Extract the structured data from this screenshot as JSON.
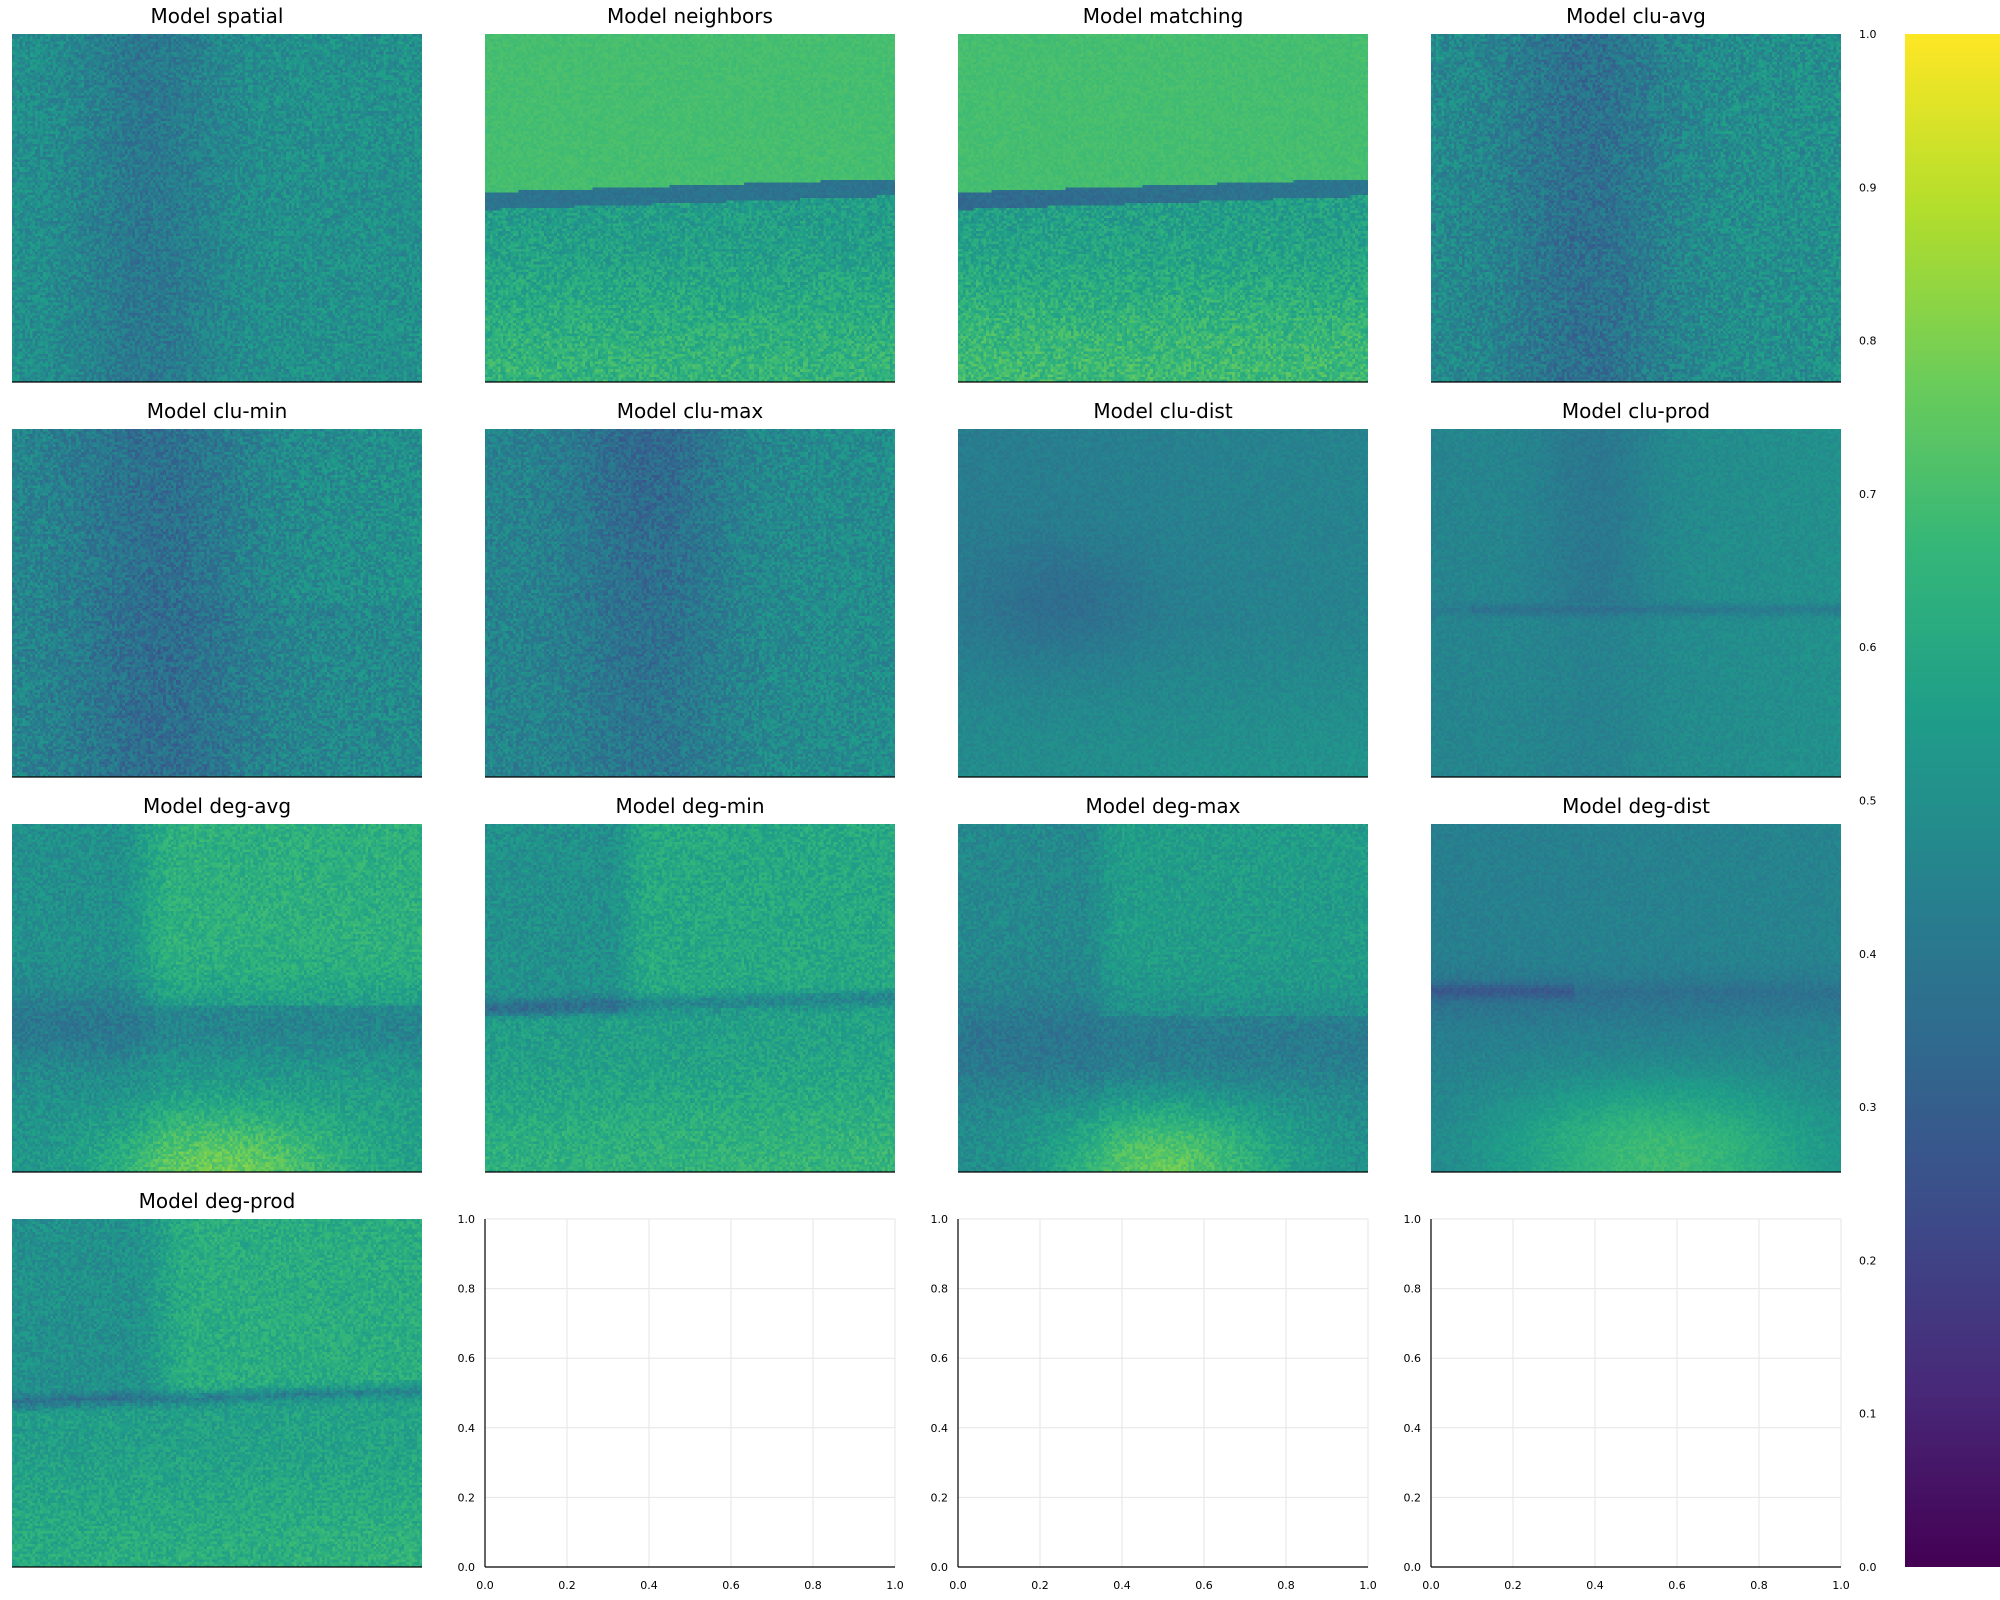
{
  "chart_data": {
    "type": "heatmap",
    "layout": {
      "rows": 4,
      "cols": 4
    },
    "colormap": "viridis",
    "colorbar": {
      "range": [
        0.0,
        1.0
      ],
      "ticks": [
        "0.0",
        "0.1",
        "0.2",
        "0.3",
        "0.4",
        "0.5",
        "0.6",
        "0.7",
        "0.8",
        "0.9",
        "1.0"
      ]
    },
    "panels": [
      {
        "title": "Model spatial",
        "pattern": "spatial"
      },
      {
        "title": "Model neighbors",
        "pattern": "neighbors"
      },
      {
        "title": "Model matching",
        "pattern": "matching"
      },
      {
        "title": "Model clu-avg",
        "pattern": "clu_avg"
      },
      {
        "title": "Model clu-min",
        "pattern": "clu_min"
      },
      {
        "title": "Model clu-max",
        "pattern": "clu_max"
      },
      {
        "title": "Model clu-dist",
        "pattern": "clu_dist"
      },
      {
        "title": "Model clu-prod",
        "pattern": "clu_prod"
      },
      {
        "title": "Model deg-avg",
        "pattern": "deg_avg"
      },
      {
        "title": "Model deg-min",
        "pattern": "deg_min"
      },
      {
        "title": "Model deg-max",
        "pattern": "deg_max"
      },
      {
        "title": "Model deg-dist",
        "pattern": "deg_dist"
      },
      {
        "title": "Model deg-prod",
        "pattern": "deg_prod"
      }
    ],
    "empty_axes": {
      "count": 3,
      "xlim": [
        0.0,
        1.0
      ],
      "ylim": [
        0.0,
        1.0
      ],
      "xticks": [
        "0.0",
        "0.2",
        "0.4",
        "0.6",
        "0.8",
        "1.0"
      ],
      "yticks": [
        "0.0",
        "0.2",
        "0.4",
        "0.6",
        "0.8",
        "1.0"
      ]
    }
  }
}
